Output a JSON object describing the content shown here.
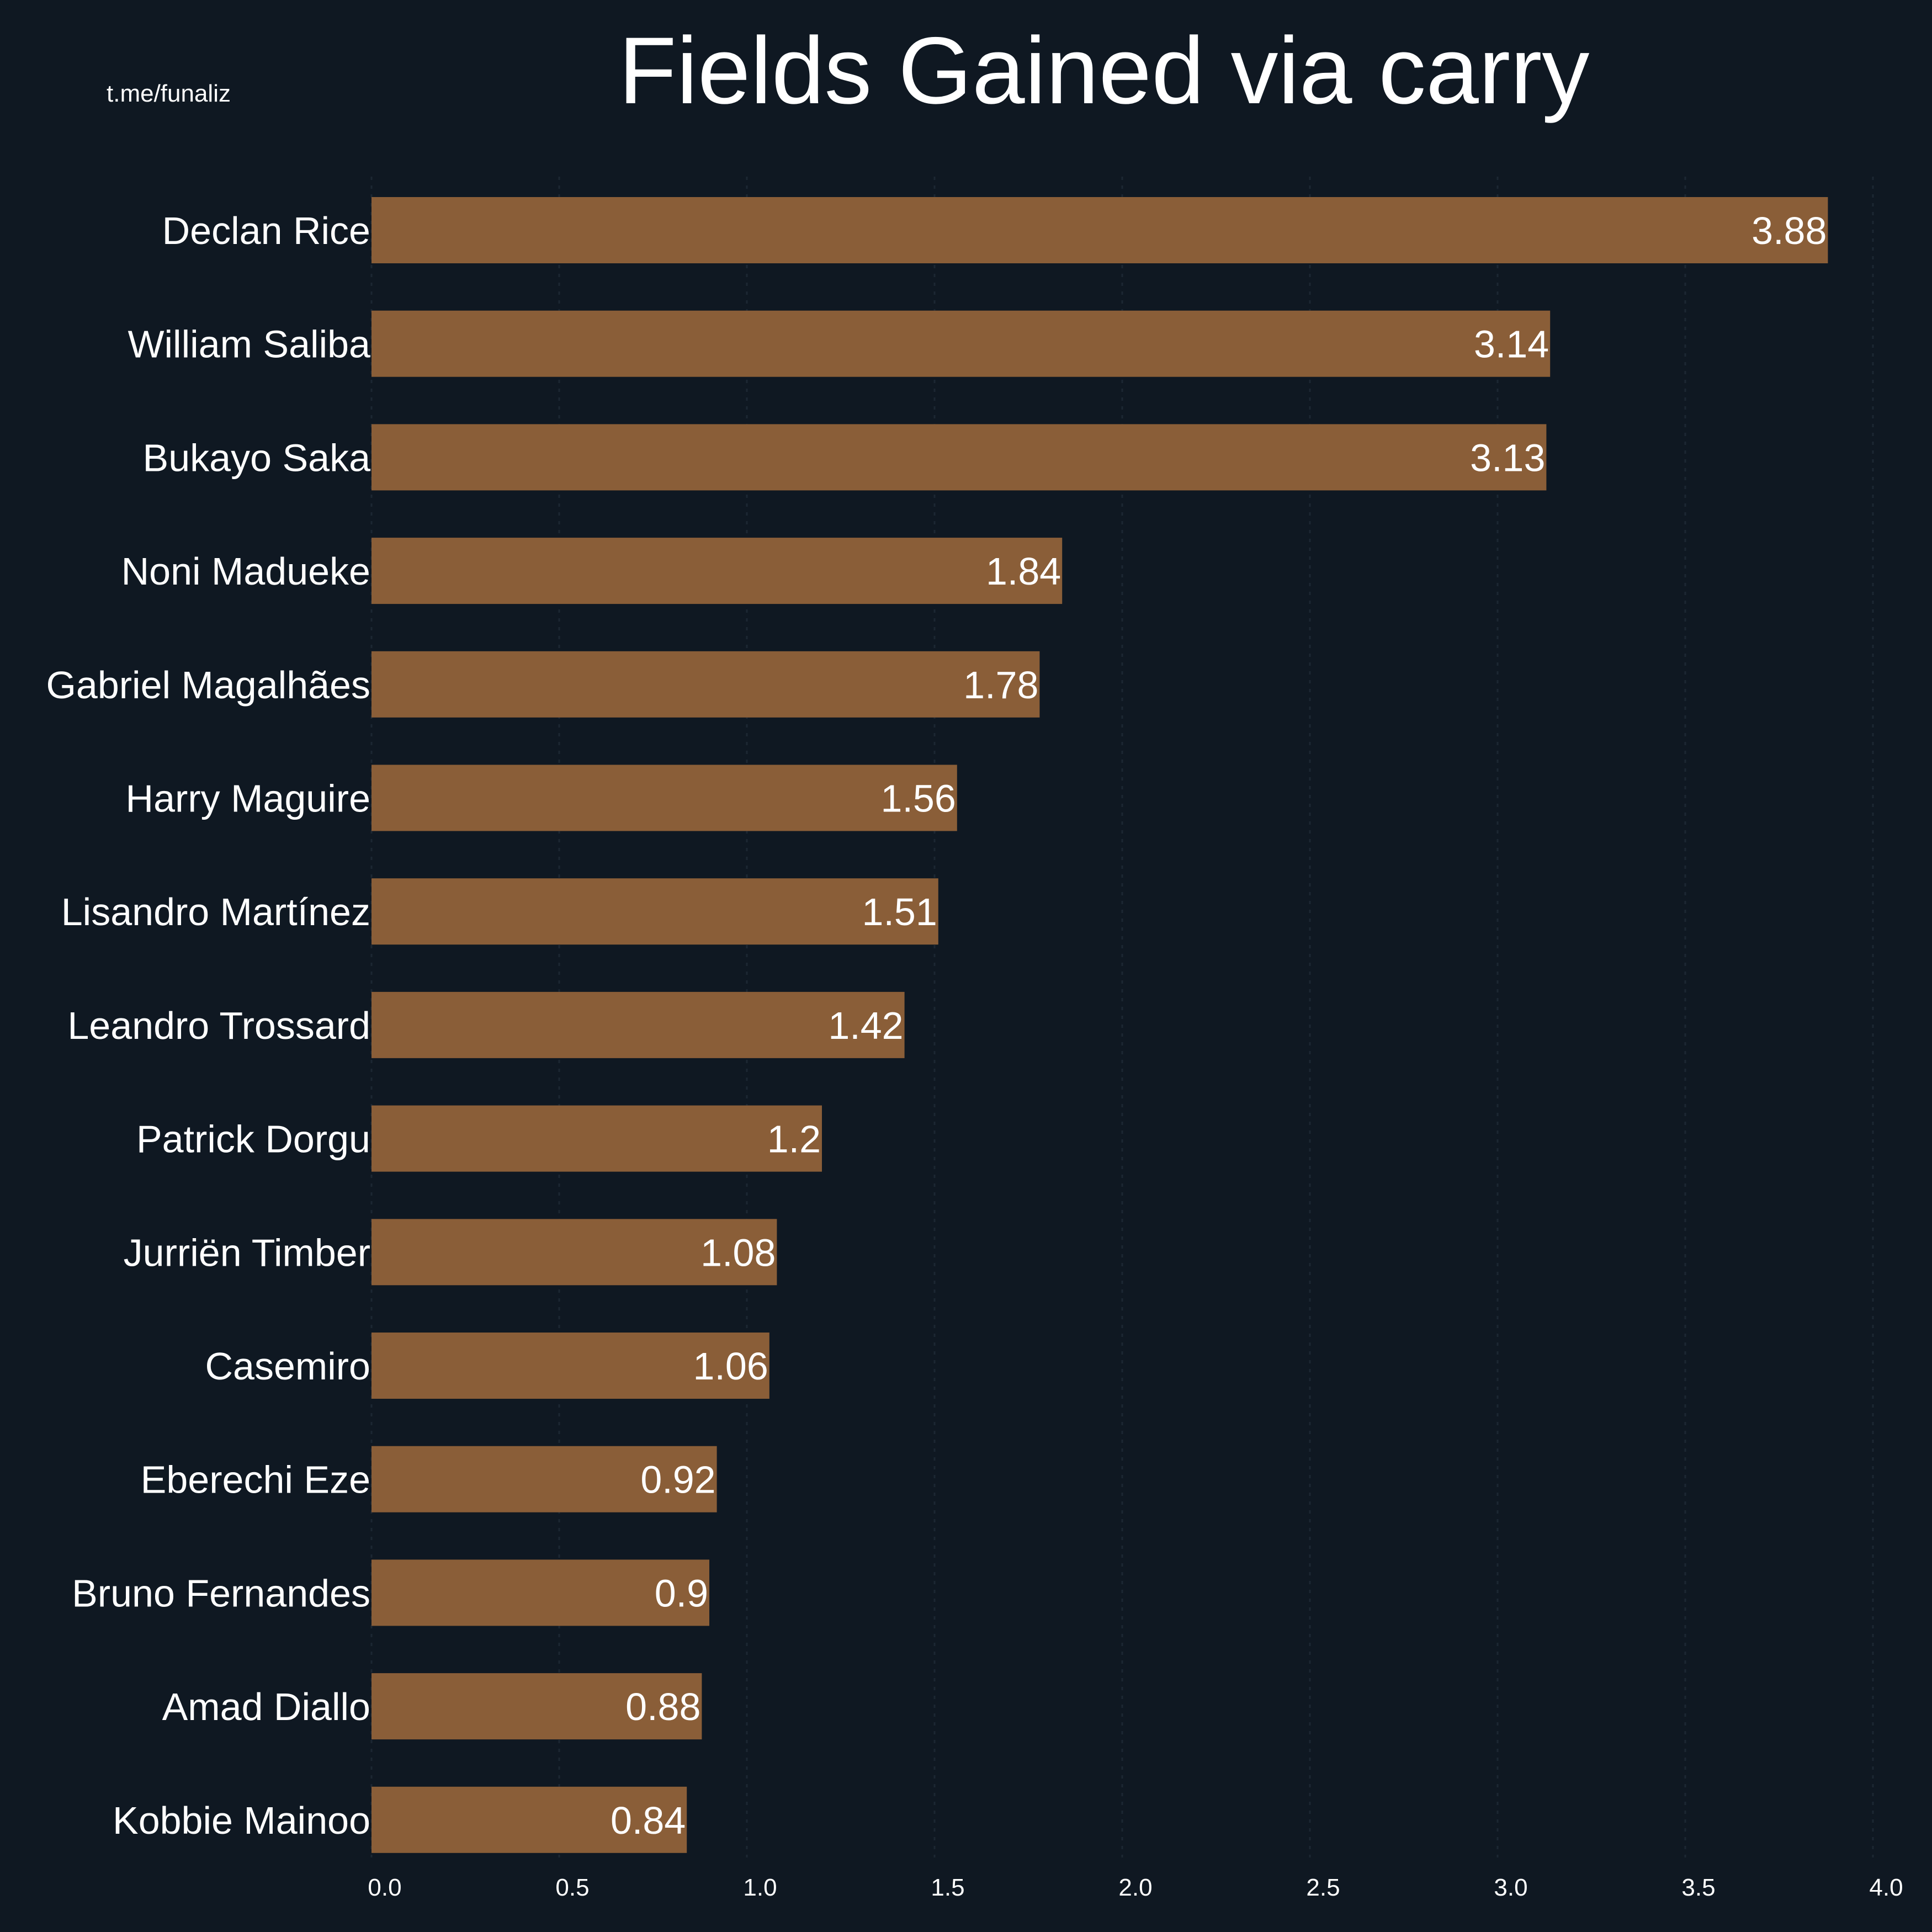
{
  "watermark": "t.me/funaliz",
  "colors": {
    "background": "#0f1822",
    "bar": "#8a5e38",
    "text": "#ffffff"
  },
  "chart_data": {
    "type": "bar",
    "orientation": "horizontal",
    "title": "Fields Gained via carry",
    "xlabel": "",
    "ylabel": "",
    "xlim": [
      0,
      4
    ],
    "xticks": [
      0.0,
      0.5,
      1.0,
      1.5,
      2.0,
      2.5,
      3.0,
      3.5,
      4.0
    ],
    "xtick_labels": [
      "0.0",
      "0.5",
      "1.0",
      "1.5",
      "2.0",
      "2.5",
      "3.0",
      "3.5",
      "4.0"
    ],
    "grid": true,
    "categories": [
      "Declan Rice",
      "William Saliba",
      "Bukayo Saka",
      "Noni Madueke",
      "Gabriel Magalhães",
      "Harry Maguire",
      "Lisandro Martínez",
      "Leandro Trossard",
      "Patrick Dorgu",
      "Jurriën Timber",
      "Casemiro",
      "Eberechi Eze",
      "Bruno Fernandes",
      "Amad Diallo",
      "Kobbie Mainoo"
    ],
    "values": [
      3.88,
      3.14,
      3.13,
      1.84,
      1.78,
      1.56,
      1.51,
      1.42,
      1.2,
      1.08,
      1.06,
      0.92,
      0.9,
      0.88,
      0.84
    ],
    "value_labels": [
      "3.88",
      "3.14",
      "3.13",
      "1.84",
      "1.78",
      "1.56",
      "1.51",
      "1.42",
      "1.2",
      "1.08",
      "1.06",
      "0.92",
      "0.9",
      "0.88",
      "0.84"
    ]
  }
}
